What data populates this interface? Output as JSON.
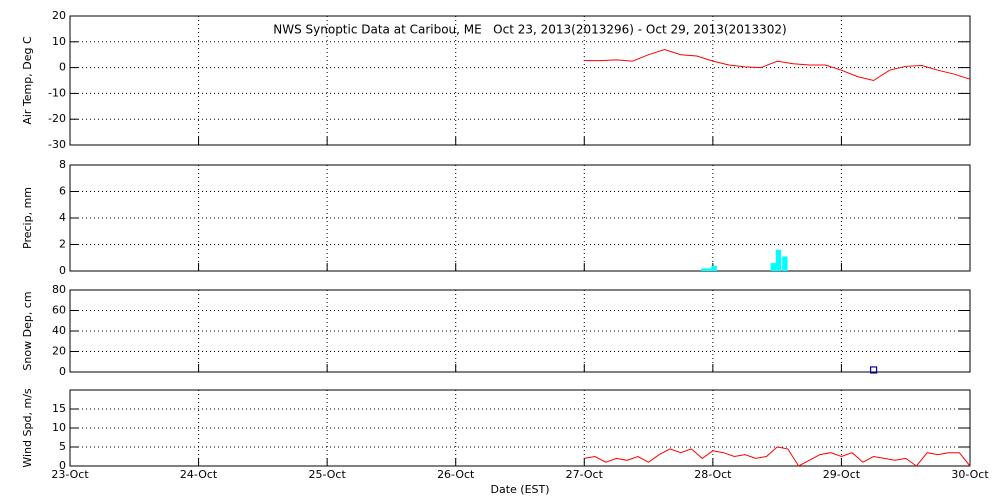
{
  "chart_data": [
    {
      "type": "line",
      "title": "NWS Synoptic Data at Caribou, ME   Oct 23, 2013(2013296) - Oct 29, 2013(2013302)",
      "ylabel": "Air Temp, Deg C",
      "color": "#ff0000",
      "grid": true,
      "x": [
        4,
        4.125,
        4.25,
        4.375,
        4.5,
        4.625,
        4.75,
        4.875,
        5,
        5.125,
        5.25,
        5.375,
        5.5,
        5.625,
        5.75,
        5.875,
        6,
        6.125,
        6.25,
        6.375,
        6.5,
        6.625,
        6.75,
        6.875,
        7
      ],
      "values": [
        2.7,
        2.7,
        3,
        2.5,
        5,
        7,
        5,
        4.5,
        2.5,
        1,
        0.3,
        0,
        2.5,
        1.5,
        1,
        1,
        -1,
        -3.5,
        -5,
        -1,
        0.5,
        0.8,
        -1,
        -2.5,
        -4.5
      ],
      "xlim": [
        0,
        7
      ],
      "xticks": [
        0,
        1,
        2,
        3,
        4,
        5,
        6,
        7
      ],
      "ylim": [
        -30,
        20
      ],
      "yticks": [
        -30,
        -20,
        -10,
        0,
        10,
        20
      ]
    },
    {
      "type": "bar",
      "ylabel": "Precip, mm",
      "color": "#00ffff",
      "grid": true,
      "x": [
        4.93,
        4.97,
        5.01,
        5.47,
        5.51,
        5.56
      ],
      "values": [
        0.2,
        0.2,
        0.4,
        0.6,
        1.6,
        1.1
      ],
      "xlim": [
        0,
        7
      ],
      "xticks": [
        0,
        1,
        2,
        3,
        4,
        5,
        6,
        7
      ],
      "ylim": [
        0,
        8
      ],
      "yticks": [
        0,
        2,
        4,
        6,
        8
      ]
    },
    {
      "type": "scatter",
      "ylabel": "Snow Dep, cm",
      "color": "#0000aa",
      "grid": true,
      "x": [
        6.25
      ],
      "values": [
        2
      ],
      "xlim": [
        0,
        7
      ],
      "xticks": [
        0,
        1,
        2,
        3,
        4,
        5,
        6,
        7
      ],
      "ylim": [
        0,
        80
      ],
      "yticks": [
        0,
        20,
        40,
        60,
        80
      ]
    },
    {
      "type": "line",
      "ylabel": "Wind Spd, m/s",
      "xlabel": "Date (EST)",
      "color": "#ff0000",
      "grid": true,
      "x": [
        4,
        4.083,
        4.167,
        4.25,
        4.333,
        4.417,
        4.5,
        4.583,
        4.667,
        4.75,
        4.833,
        4.917,
        5,
        5.083,
        5.167,
        5.25,
        5.333,
        5.417,
        5.5,
        5.583,
        5.667,
        5.75,
        5.833,
        5.917,
        6,
        6.083,
        6.167,
        6.25,
        6.333,
        6.417,
        6.5,
        6.583,
        6.667,
        6.75,
        6.833,
        6.917,
        7
      ],
      "values": [
        2,
        2.5,
        1,
        2,
        1.5,
        2.5,
        1,
        3,
        4.5,
        3.5,
        4.5,
        2,
        4,
        3.5,
        2.5,
        3,
        2,
        2.5,
        5,
        4.5,
        0,
        1.5,
        3,
        3.5,
        2.5,
        3.5,
        1,
        2.5,
        2,
        1.5,
        2,
        0,
        3.5,
        3,
        3.5,
        3.5,
        0
      ],
      "xlim": [
        0,
        7
      ],
      "xticks": [
        {
          "value": 0,
          "label": "23-Oct"
        },
        {
          "value": 1,
          "label": "24-Oct"
        },
        {
          "value": 2,
          "label": "25-Oct"
        },
        {
          "value": 3,
          "label": "26-Oct"
        },
        {
          "value": 4,
          "label": "27-Oct"
        },
        {
          "value": 5,
          "label": "28-Oct"
        },
        {
          "value": 6,
          "label": "29-Oct"
        },
        {
          "value": 7,
          "label": "30-Oct"
        }
      ],
      "ylim": [
        0,
        20
      ],
      "yticks": [
        0,
        5,
        10,
        15
      ]
    }
  ]
}
